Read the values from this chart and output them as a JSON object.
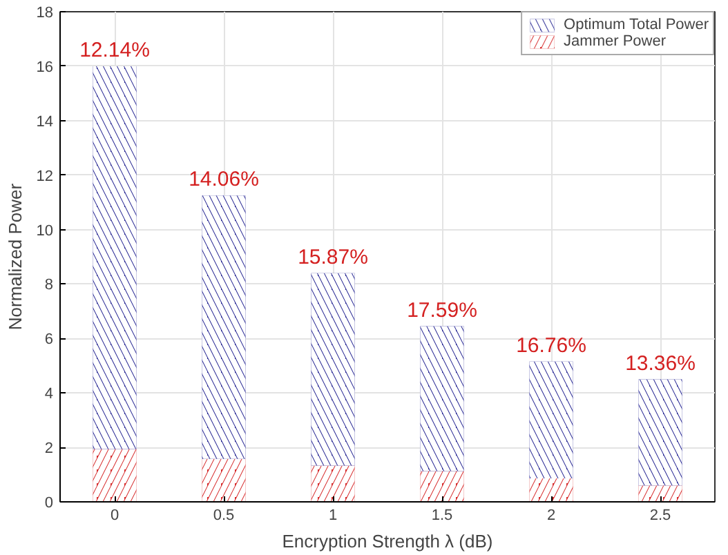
{
  "chart_data": {
    "type": "bar",
    "stacked": true,
    "xlabel": "Encryption Strength λ (dB)",
    "ylabel": "Normalized Power",
    "categories": [
      "0",
      "0.5",
      "1",
      "1.5",
      "2",
      "2.5"
    ],
    "series": [
      {
        "name": "Jammer Power",
        "color": "#d62728",
        "values": [
          1.94,
          1.58,
          1.33,
          1.13,
          0.86,
          0.6
        ]
      },
      {
        "name": "Optimum Total Power",
        "color": "#1f1f8f",
        "values": [
          14.06,
          9.67,
          7.07,
          5.32,
          4.29,
          3.9
        ]
      }
    ],
    "ylim": [
      0,
      18
    ],
    "yticks": [
      0,
      2,
      4,
      6,
      8,
      10,
      12,
      14,
      16,
      18
    ],
    "grid": true,
    "legend": "top right",
    "annotations": [
      {
        "text": "12.14%",
        "x": "0",
        "y": 16
      },
      {
        "text": "14.06%",
        "x": "0.5",
        "y": 11.25
      },
      {
        "text": "15.87%",
        "x": "1",
        "y": 8.4
      },
      {
        "text": "17.59%",
        "x": "1.5",
        "y": 6.45
      },
      {
        "text": "16.76%",
        "x": "2",
        "y": 5.15
      },
      {
        "text": "13.36%",
        "x": "2.5",
        "y": 4.5
      }
    ]
  }
}
